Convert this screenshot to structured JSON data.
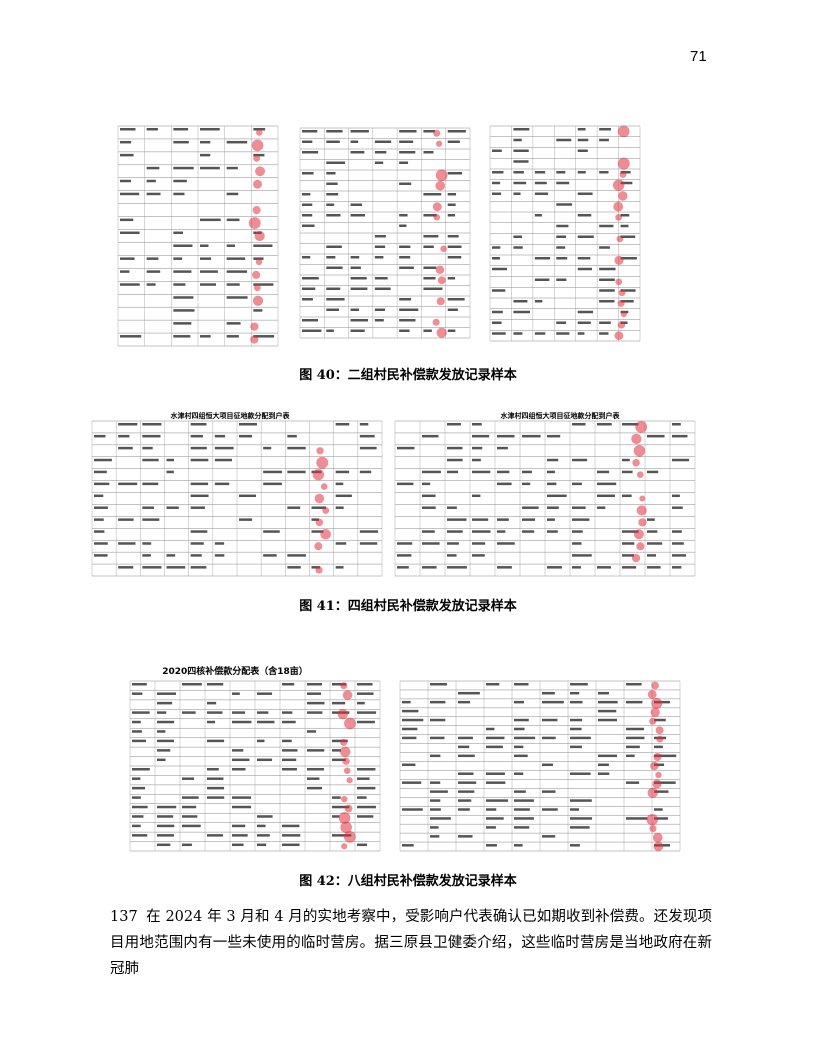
{
  "page_number": "71",
  "figures": [
    {
      "caption": "图 40：二组村民补偿款发放记录样本"
    },
    {
      "caption": "图 41：四组村民补偿款发放记录样本",
      "sheet_titles": [
        "水津村四组恒大项目征地款分配到户表",
        "水津村四组恒大项目征地款分配到户表"
      ]
    },
    {
      "caption": "图 42：八组村民补偿款发放记录样本",
      "sheet_titles": [
        "2020四核补偿款分配表（含18亩）"
      ]
    }
  ],
  "paragraph": {
    "number": "137",
    "text": "在 2024 年 3 月和 4 月的实地考察中，受影响户代表确认已如期收到补偿费。还发现项目用地范围内有一些未使用的临时营房。据三原县卫健委介绍，这些临时营房是当地政府在新冠肺"
  }
}
